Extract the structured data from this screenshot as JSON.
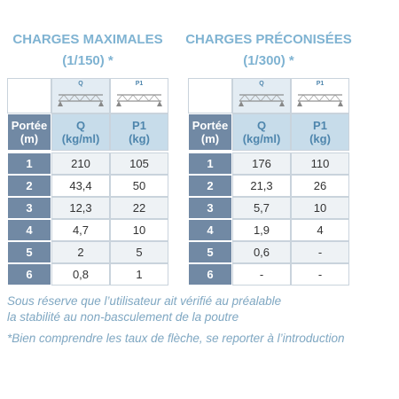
{
  "tables": [
    {
      "title": [
        "CHARGES MAXIMALES",
        "(1/150) *"
      ],
      "icons": [
        "Q",
        "P1"
      ],
      "header": [
        [
          "Portée",
          "(m)"
        ],
        [
          "Q",
          "(kg/ml)"
        ],
        [
          "P1",
          "(kg)"
        ]
      ],
      "rows": [
        [
          "1",
          "210",
          "105"
        ],
        [
          "2",
          "43,4",
          "50"
        ],
        [
          "3",
          "12,3",
          "22"
        ],
        [
          "4",
          "4,7",
          "10"
        ],
        [
          "5",
          "2",
          "5"
        ],
        [
          "6",
          "0,8",
          "1"
        ]
      ]
    },
    {
      "title": [
        "CHARGES PRÉCONISÉES",
        "(1/300) *"
      ],
      "icons": [
        "Q",
        "P1"
      ],
      "header": [
        [
          "Portée",
          "(m)"
        ],
        [
          "Q",
          "(kg/ml)"
        ],
        [
          "P1",
          "(kg)"
        ]
      ],
      "rows": [
        [
          "1",
          "176",
          "110"
        ],
        [
          "2",
          "21,3",
          "26"
        ],
        [
          "3",
          "5,7",
          "10"
        ],
        [
          "4",
          "1,9",
          "4"
        ],
        [
          "5",
          "0,6",
          "-"
        ],
        [
          "6",
          "-",
          "-"
        ]
      ]
    }
  ],
  "notes": [
    "Sous réserve que l’utilisateur ait vérifié au préalable",
    "la stabilité au non-basculement de la poutre",
    "*Bien comprendre les taux de flèche, se reporter à l’introduction"
  ]
}
